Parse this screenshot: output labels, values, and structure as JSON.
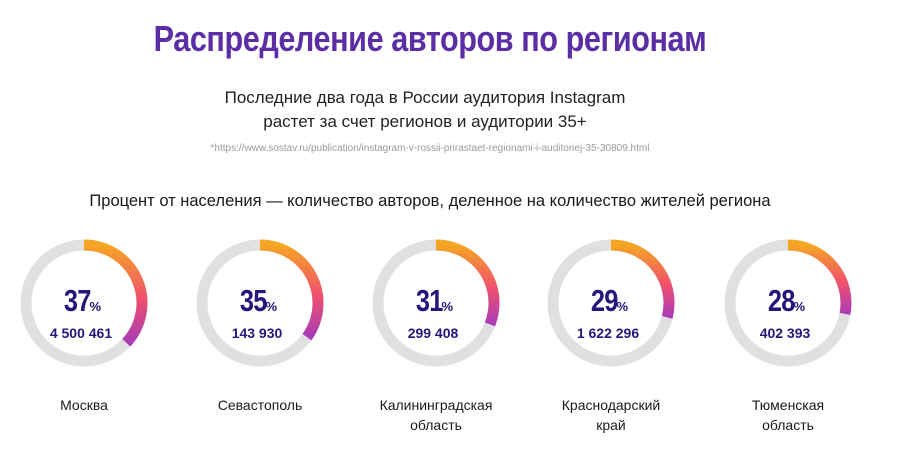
{
  "title": "Распределение авторов по регионам",
  "subtitle_line1": "Последние два года в России аудитория Instagram",
  "subtitle_line2": "растет за счет регионов и аудитории 35+",
  "source": "*https://www.sostav.ru/publication/instagram-v-rossii-prirastaet-regionami-i-auditoriej-35-30809.html",
  "note": "Процент от населения — количество авторов, деленное на количество жителей региона",
  "colors": {
    "title": "#5b2ea6",
    "number": "#24167a",
    "track": "#e0e0e0",
    "gradient_start": "#f5a623",
    "gradient_mid": "#f0506e",
    "gradient_end": "#a93bb8"
  },
  "chart_data": {
    "type": "donut",
    "unit": "%",
    "items": [
      {
        "region": "Москва",
        "region_line2": "",
        "percent": 37,
        "count": "4 500 461"
      },
      {
        "region": "Севастополь",
        "region_line2": "",
        "percent": 35,
        "count": "143 930"
      },
      {
        "region": "Калининградская",
        "region_line2": "область",
        "percent": 31,
        "count": "299 408"
      },
      {
        "region": "Краснодарский",
        "region_line2": "край",
        "percent": 29,
        "count": "1 622 296"
      },
      {
        "region": "Тюменская",
        "region_line2": "область",
        "percent": 28,
        "count": "402 393"
      }
    ]
  }
}
